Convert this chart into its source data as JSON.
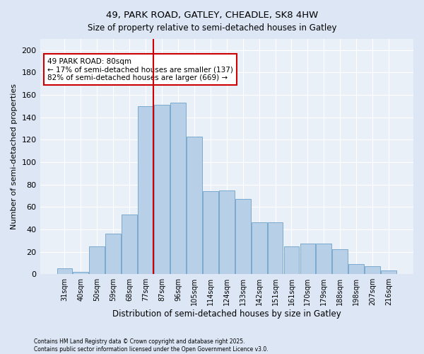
{
  "title1": "49, PARK ROAD, GATLEY, CHEADLE, SK8 4HW",
  "title2": "Size of property relative to semi-detached houses in Gatley",
  "xlabel": "Distribution of semi-detached houses by size in Gatley",
  "ylabel": "Number of semi-detached properties",
  "categories": [
    "31sqm",
    "40sqm",
    "50sqm",
    "59sqm",
    "68sqm",
    "77sqm",
    "87sqm",
    "96sqm",
    "105sqm",
    "114sqm",
    "124sqm",
    "133sqm",
    "142sqm",
    "151sqm",
    "161sqm",
    "170sqm",
    "179sqm",
    "188sqm",
    "198sqm",
    "207sqm",
    "216sqm"
  ],
  "bar_heights": [
    5,
    2,
    25,
    36,
    53,
    150,
    151,
    153,
    123,
    74,
    75,
    67,
    46,
    46,
    25,
    27,
    27,
    22,
    9,
    7,
    3
  ],
  "bar_color": "#b8cfe8",
  "bar_edge_color": "#7aaacf",
  "vline_color": "#cc0000",
  "annotation_title": "49 PARK ROAD: 80sqm",
  "annotation_line1": "← 17% of semi-detached houses are smaller (137)",
  "annotation_line2": "82% of semi-detached houses are larger (669) →",
  "annotation_box_edge_color": "#cc0000",
  "footer1": "Contains HM Land Registry data © Crown copyright and database right 2025.",
  "footer2": "Contains public sector information licensed under the Open Government Licence v3.0.",
  "bg_color": "#dce6f5",
  "plot_bg_color": "#eaf0f8",
  "ylim": [
    0,
    210
  ],
  "yticks": [
    0,
    20,
    40,
    60,
    80,
    100,
    120,
    140,
    160,
    180,
    200
  ]
}
